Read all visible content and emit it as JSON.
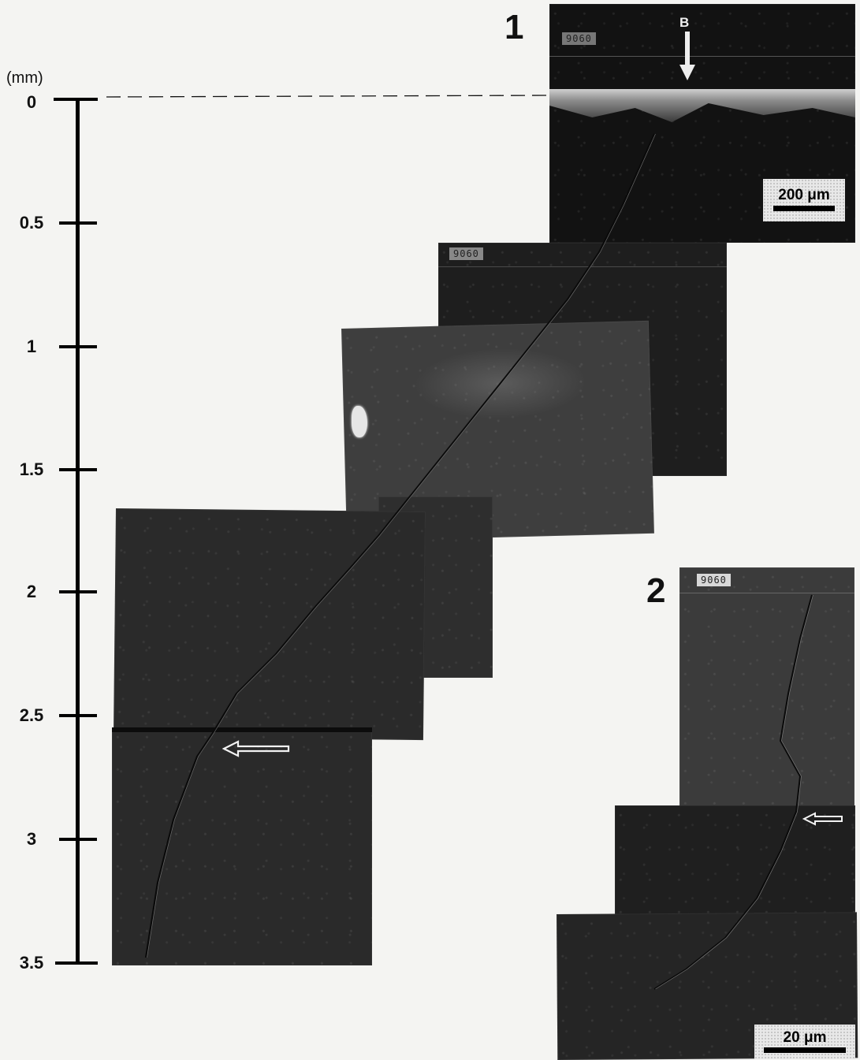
{
  "axis": {
    "unit": "(mm)",
    "ticks": [
      "0",
      "0.5",
      "1",
      "1.5",
      "2",
      "2.5",
      "3",
      "3.5"
    ]
  },
  "figures": {
    "one": {
      "number": "1",
      "marker": "B",
      "tag": "9060",
      "scale_label": "200 μm"
    },
    "two": {
      "number": "2",
      "tag": "9060",
      "scale_label": "20 μm"
    }
  },
  "colors": {
    "plate_dark": "#1c1c1c",
    "plate_mid": "#333333",
    "plate_light": "#4a4a4a",
    "axis": "#000000"
  }
}
